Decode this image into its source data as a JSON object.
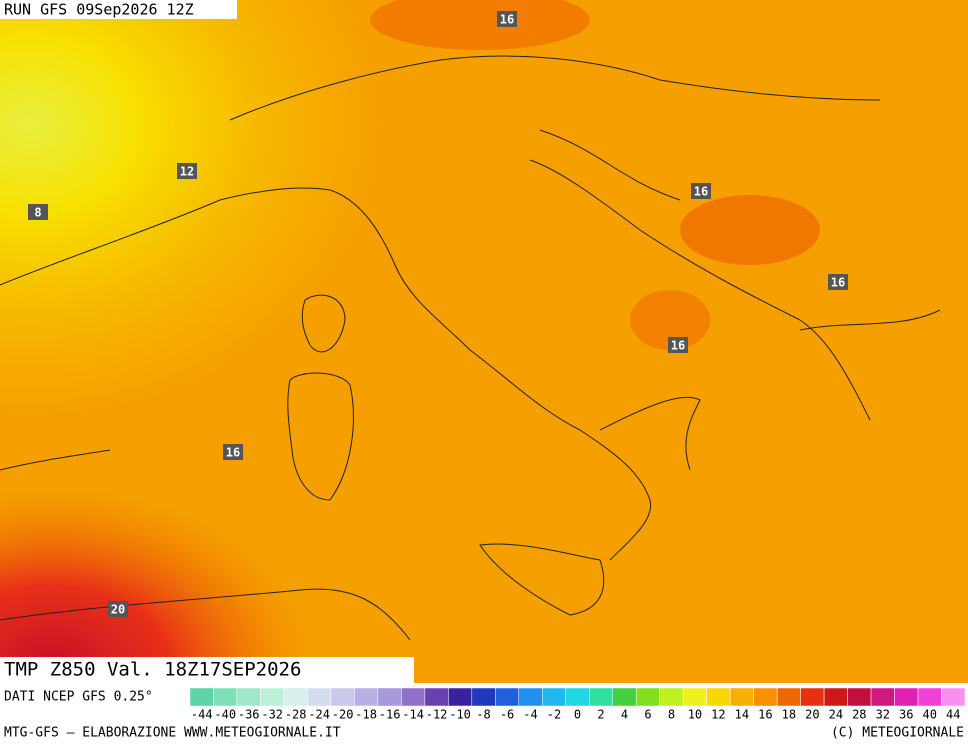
{
  "header": {
    "run": "RUN GFS 09Sep2026 12Z"
  },
  "map": {
    "contour_labels": [
      "16",
      "12",
      "8",
      "16",
      "16",
      "16",
      "16",
      "20"
    ]
  },
  "footer": {
    "field": "TMP Z850 Val. 18Z17SEP2026",
    "source": "DATI NCEP GFS 0.25°",
    "credit_left": "MTG-GFS — ELABORAZIONE WWW.METEOGIORNALE.IT",
    "credit_right": "(C) METEOGIORNALE"
  },
  "colorbar": {
    "ticks": [
      -44,
      -40,
      -36,
      -32,
      -28,
      -24,
      -20,
      -18,
      -16,
      -14,
      -12,
      -10,
      -8,
      -6,
      -4,
      -2,
      0,
      2,
      4,
      6,
      8,
      10,
      12,
      14,
      16,
      18,
      20,
      24,
      28,
      32,
      36,
      40,
      44
    ],
    "colors": [
      "#5fd3a8",
      "#7fe0b8",
      "#9de8c8",
      "#bdf0d8",
      "#d8f0ec",
      "#d6dcf0",
      "#c8c8ec",
      "#b8b0e4",
      "#a898dc",
      "#9070c8",
      "#6a40b0",
      "#3a20a0",
      "#2038c0",
      "#2060e0",
      "#2090f0",
      "#20b8f0",
      "#20d8e0",
      "#30e0a0",
      "#40d040",
      "#80e020",
      "#c0f020",
      "#f0f020",
      "#f8d800",
      "#f8b000",
      "#f89000",
      "#f06800",
      "#e83010",
      "#d01818",
      "#c01040",
      "#d01880",
      "#e020b0",
      "#f040d8",
      "#f890f0"
    ]
  }
}
